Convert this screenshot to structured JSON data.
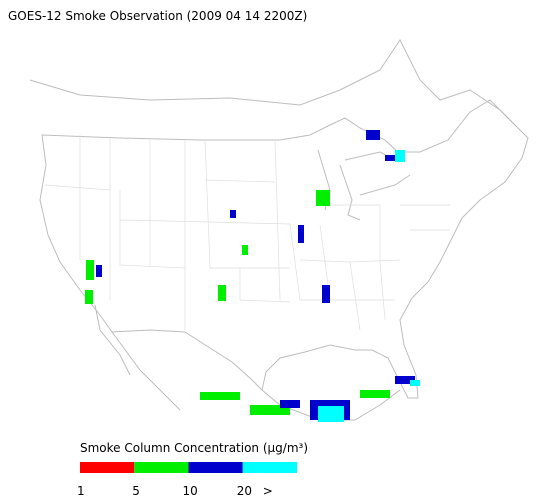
{
  "header": {
    "title": "GOES-12 Smoke Observation (2009 04 14  2200Z)"
  },
  "legend": {
    "title": "Smoke Column Concentration (μg/m³)",
    "colors": [
      "#ff0000",
      "#00ee00",
      "#0000cc",
      "#00ffff"
    ],
    "labels": [
      "1",
      "5",
      "10",
      "20",
      ">"
    ]
  }
}
